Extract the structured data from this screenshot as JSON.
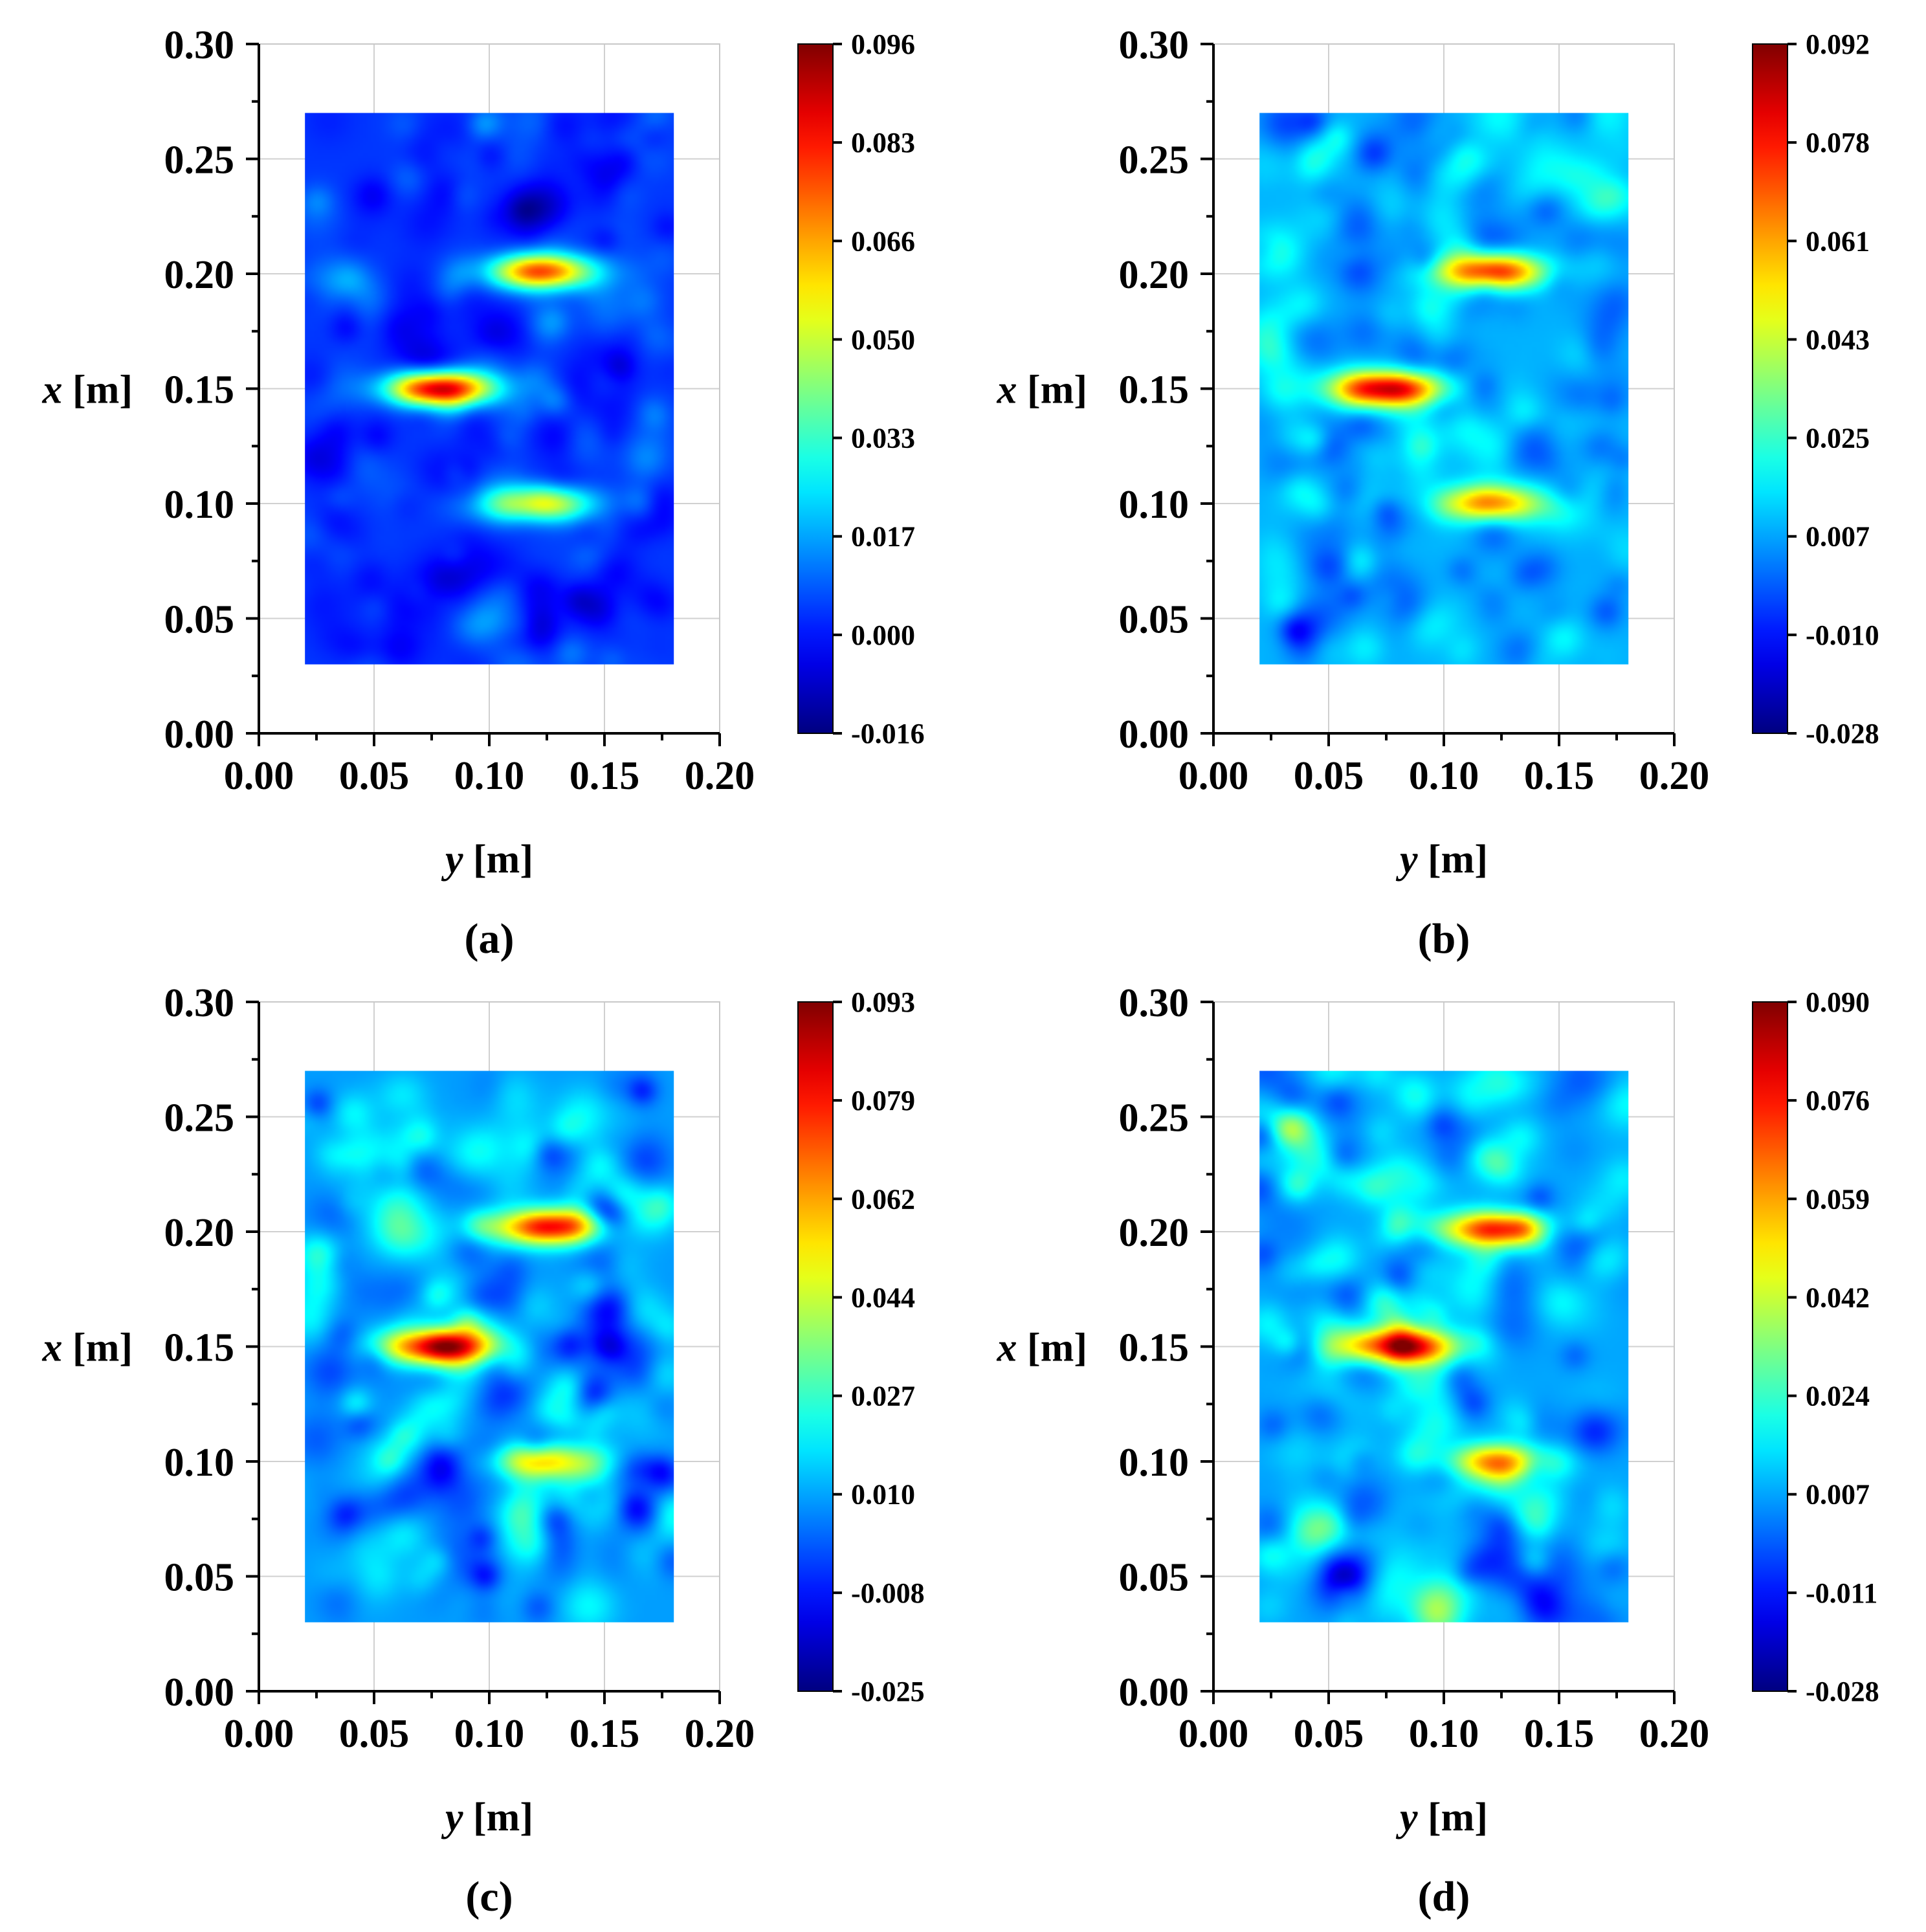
{
  "chart_data": [
    {
      "type": "heatmap",
      "panel_label": "(a)",
      "xlabel": "y [m]",
      "ylabel": "x [m]",
      "xlim": [
        0.0,
        0.2
      ],
      "ylim": [
        0.0,
        0.3
      ],
      "x_ticks": [
        "0.00",
        "0.05",
        "0.10",
        "0.15",
        "0.20"
      ],
      "y_ticks": [
        "0.00",
        "0.05",
        "0.10",
        "0.15",
        "0.20",
        "0.25",
        "0.30"
      ],
      "grid": true,
      "data_extent": {
        "y": [
          0.02,
          0.18
        ],
        "x": [
          0.03,
          0.27
        ]
      },
      "colormap": "jet",
      "colorbar": {
        "min": -0.016,
        "max": 0.096,
        "ticks": [
          "0.096",
          "0.083",
          "0.066",
          "0.050",
          "0.033",
          "0.017",
          "0.000",
          "-0.016"
        ]
      },
      "background_level": 0.004,
      "noise_amplitude": 0.012,
      "hotspots": [
        {
          "y": 0.122,
          "x": 0.201,
          "value": 0.075
        },
        {
          "y": 0.078,
          "x": 0.15,
          "value": 0.096
        },
        {
          "y": 0.122,
          "x": 0.1,
          "value": 0.055
        }
      ]
    },
    {
      "type": "heatmap",
      "panel_label": "(b)",
      "xlabel": "y [m]",
      "ylabel": "x [m]",
      "xlim": [
        0.0,
        0.2
      ],
      "ylim": [
        0.0,
        0.3
      ],
      "x_ticks": [
        "0.00",
        "0.05",
        "0.10",
        "0.15",
        "0.20"
      ],
      "y_ticks": [
        "0.00",
        "0.05",
        "0.10",
        "0.15",
        "0.20",
        "0.25",
        "0.30"
      ],
      "grid": true,
      "data_extent": {
        "y": [
          0.02,
          0.18
        ],
        "x": [
          0.03,
          0.27
        ]
      },
      "colormap": "jet",
      "colorbar": {
        "min": -0.028,
        "max": 0.092,
        "ticks": [
          "0.092",
          "0.078",
          "0.061",
          "0.043",
          "0.025",
          "0.007",
          "-0.010",
          "-0.028"
        ]
      },
      "background_level": 0.008,
      "noise_amplitude": 0.018,
      "hotspots": [
        {
          "y": 0.12,
          "x": 0.201,
          "value": 0.078
        },
        {
          "y": 0.076,
          "x": 0.15,
          "value": 0.092
        },
        {
          "y": 0.12,
          "x": 0.1,
          "value": 0.058
        }
      ]
    },
    {
      "type": "heatmap",
      "panel_label": "(c)",
      "xlabel": "y [m]",
      "ylabel": "x [m]",
      "xlim": [
        0.0,
        0.2
      ],
      "ylim": [
        0.0,
        0.3
      ],
      "x_ticks": [
        "0.00",
        "0.05",
        "0.10",
        "0.15",
        "0.20"
      ],
      "y_ticks": [
        "0.00",
        "0.05",
        "0.10",
        "0.15",
        "0.20",
        "0.25",
        "0.30"
      ],
      "grid": true,
      "data_extent": {
        "y": [
          0.02,
          0.18
        ],
        "x": [
          0.03,
          0.27
        ]
      },
      "colormap": "jet",
      "colorbar": {
        "min": -0.025,
        "max": 0.093,
        "ticks": [
          "0.093",
          "0.079",
          "0.062",
          "0.044",
          "0.027",
          "0.010",
          "-0.008",
          "-0.025"
        ]
      },
      "background_level": 0.008,
      "noise_amplitude": 0.022,
      "hotspots": [
        {
          "y": 0.124,
          "x": 0.202,
          "value": 0.078
        },
        {
          "y": 0.078,
          "x": 0.15,
          "value": 0.093
        },
        {
          "y": 0.122,
          "x": 0.1,
          "value": 0.055
        }
      ]
    },
    {
      "type": "heatmap",
      "panel_label": "(d)",
      "xlabel": "y [m]",
      "ylabel": "x [m]",
      "xlim": [
        0.0,
        0.2
      ],
      "ylim": [
        0.0,
        0.3
      ],
      "x_ticks": [
        "0.00",
        "0.05",
        "0.10",
        "0.15",
        "0.20"
      ],
      "y_ticks": [
        "0.00",
        "0.05",
        "0.10",
        "0.15",
        "0.20",
        "0.25",
        "0.30"
      ],
      "grid": true,
      "data_extent": {
        "y": [
          0.02,
          0.18
        ],
        "x": [
          0.03,
          0.27
        ]
      },
      "colormap": "jet",
      "colorbar": {
        "min": -0.028,
        "max": 0.09,
        "ticks": [
          "0.090",
          "0.076",
          "0.059",
          "0.042",
          "0.024",
          "0.007",
          "-0.011",
          "-0.028"
        ]
      },
      "background_level": 0.006,
      "noise_amplitude": 0.022,
      "hotspots": [
        {
          "y": 0.122,
          "x": 0.201,
          "value": 0.072
        },
        {
          "y": 0.08,
          "x": 0.15,
          "value": 0.09
        },
        {
          "y": 0.122,
          "x": 0.1,
          "value": 0.055
        }
      ]
    }
  ]
}
